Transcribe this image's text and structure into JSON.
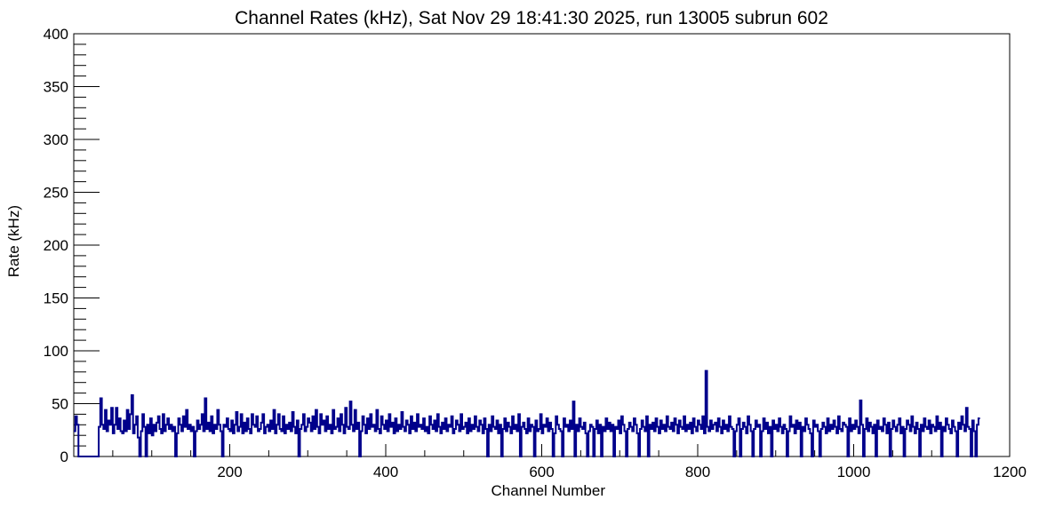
{
  "chart_data": {
    "type": "line",
    "title": "Channel Rates (kHz), Sat Nov 29 18:41:30 2025, run 13005 subrun 602",
    "xlabel": "Channel Number",
    "ylabel": "Rate (kHz)",
    "xlim": [
      0,
      1200
    ],
    "ylim": [
      0,
      400
    ],
    "x_ticks": [
      "200",
      "400",
      "600",
      "800",
      "1000",
      "1200"
    ],
    "y_ticks": [
      "0",
      "50",
      "100",
      "150",
      "200",
      "250",
      "300",
      "350",
      "400"
    ],
    "x_tick_values": [
      200,
      400,
      600,
      800,
      1000,
      1200
    ],
    "y_tick_values": [
      0,
      50,
      100,
      150,
      200,
      250,
      300,
      350,
      400
    ],
    "grid": false,
    "line_color": "#00008b",
    "series": [
      {
        "name": "",
        "step_histogram": true,
        "bin_width": 2,
        "dropout_bins_x": [
          0,
          8,
          10,
          12,
          14,
          16,
          18,
          20,
          22,
          24,
          26,
          28,
          30,
          84,
          90,
          96,
          144,
          162,
          188,
          232,
          296,
          338,
          354,
          404,
          506,
          526,
          556,
          568,
          576,
          578,
          582,
          604,
          610,
          614,
          632,
          648,
          668,
          676,
          680,
          690,
          702,
          720,
          736,
          742,
          756,
          760,
          870,
          874,
          904,
          920,
          930,
          940,
          952,
          962,
          968,
          1010,
          1030,
          1044,
          1062,
          1080,
          1098,
          1108,
          1142,
          1172,
          1188,
          1194
        ],
        "spike_points": [
          {
            "x": 2,
            "y": 52
          },
          {
            "x": 34,
            "y": 55
          },
          {
            "x": 82,
            "y": 58
          },
          {
            "x": 164,
            "y": 55
          },
          {
            "x": 350,
            "y": 52
          },
          {
            "x": 660,
            "y": 52
          },
          {
            "x": 846,
            "y": 81
          },
          {
            "x": 1028,
            "y": 53
          },
          {
            "x": 1188,
            "y": 46
          }
        ],
        "baseline_range": [
          20,
          38
        ],
        "y": [
          24,
          38,
          30,
          0,
          0,
          0,
          0,
          0,
          0,
          0,
          0,
          0,
          0,
          0,
          0,
          0,
          28,
          55,
          30,
          26,
          44,
          24,
          34,
          30,
          46,
          22,
          30,
          46,
          26,
          36,
          24,
          22,
          34,
          24,
          44,
          26,
          40,
          58,
          22,
          30,
          38,
          18,
          0,
          24,
          40,
          28,
          0,
          30,
          22,
          36,
          20,
          30,
          24,
          32,
          38,
          26,
          22,
          40,
          24,
          30,
          36,
          26,
          30,
          24,
          28,
          0,
          22,
          36,
          30,
          24,
          38,
          28,
          44,
          26,
          30,
          24,
          28,
          0,
          24,
          34,
          26,
          30,
          40,
          24,
          55,
          26,
          32,
          24,
          38,
          22,
          30,
          26,
          44,
          30,
          24,
          0,
          30,
          28,
          36,
          26,
          24,
          34,
          22,
          30,
          42,
          24,
          28,
          40,
          22,
          32,
          24,
          36,
          26,
          22,
          40,
          30,
          28,
          38,
          24,
          26,
          32,
          40,
          22,
          28,
          30,
          24,
          34,
          26,
          44,
          22,
          30,
          40,
          26,
          24,
          38,
          22,
          30,
          26,
          32,
          24,
          42,
          28,
          22,
          34,
          0,
          26,
          30,
          40,
          24,
          28,
          36,
          32,
          24,
          38,
          26,
          44,
          28,
          22,
          40,
          30,
          34,
          24,
          38,
          26,
          30,
          22,
          44,
          26,
          28,
          36,
          24,
          40,
          30,
          22,
          46,
          28,
          26,
          52,
          30,
          24,
          44,
          26,
          32,
          0,
          24,
          38,
          30,
          22,
          36,
          26,
          40,
          28,
          30,
          24,
          44,
          26,
          22,
          38,
          30,
          26,
          34,
          24,
          40,
          28,
          32,
          22,
          36,
          24,
          30,
          26,
          42,
          28,
          24,
          34,
          30,
          22,
          38,
          26,
          32,
          24,
          40,
          28,
          30,
          26,
          36,
          24,
          28,
          22,
          38,
          30,
          26,
          34,
          24,
          40,
          28,
          22,
          32,
          26,
          36,
          24,
          30,
          28,
          38,
          22,
          26,
          34,
          30,
          24,
          40,
          26,
          28,
          32,
          22,
          36,
          24,
          30,
          26,
          38,
          28,
          24,
          34,
          30,
          22,
          36,
          26,
          0,
          30,
          24,
          38,
          28,
          26,
          34,
          22,
          30,
          0,
          26,
          36,
          24,
          32,
          28,
          22,
          38,
          26,
          30,
          24,
          40,
          0,
          28,
          32,
          26,
          22,
          36,
          24,
          30,
          28,
          0,
          34,
          24,
          26,
          40,
          22,
          30,
          28,
          36,
          24,
          32,
          26,
          0,
          22,
          38,
          30,
          26,
          24,
          0,
          36,
          28,
          30,
          24,
          34,
          26,
          52,
          0,
          30,
          24,
          36,
          28,
          26,
          32,
          22,
          0,
          24,
          30,
          28,
          0,
          26,
          34,
          22,
          30,
          0,
          28,
          24,
          36,
          26,
          32,
          24,
          30,
          0,
          28,
          26,
          34,
          22,
          38,
          30,
          24,
          0,
          26,
          32,
          28,
          24,
          36,
          30,
          22,
          0,
          26,
          34,
          28,
          24,
          38,
          0,
          30,
          26,
          32,
          24,
          36,
          28,
          22,
          34,
          26,
          30,
          24,
          38,
          28,
          26,
          32,
          24,
          36,
          30,
          22,
          34,
          28,
          26,
          38,
          24,
          30,
          26,
          32,
          22,
          36,
          28,
          24,
          34,
          30,
          26,
          38,
          22,
          81,
          28,
          24,
          34,
          26,
          30,
          32,
          24,
          36,
          28,
          22,
          34,
          26,
          30,
          24,
          38,
          28,
          26,
          0,
          24,
          30,
          36,
          0,
          26,
          32,
          28,
          22,
          38,
          30,
          24,
          0,
          26,
          34,
          28,
          30,
          0,
          24,
          36,
          26,
          32,
          22,
          28,
          0,
          34,
          26,
          30,
          24,
          36,
          28,
          22,
          30,
          26,
          0,
          24,
          38,
          28,
          30,
          22,
          34,
          26,
          32,
          0,
          28,
          24,
          36,
          30,
          26,
          22,
          0,
          34,
          28,
          30,
          24,
          0,
          26,
          32,
          28,
          22,
          36,
          24,
          30,
          26,
          34,
          28,
          22,
          38,
          26,
          24,
          32,
          30,
          28,
          0,
          36,
          24,
          30,
          26,
          34,
          28,
          22,
          53,
          30,
          0,
          26,
          36,
          24,
          32,
          28,
          22,
          30,
          0,
          34,
          26,
          28,
          24,
          36,
          30,
          22,
          32,
          0,
          26,
          34,
          28,
          24,
          30,
          36,
          22,
          28,
          0,
          26,
          34,
          30,
          24,
          38,
          28,
          22,
          32,
          26,
          0,
          30,
          24,
          36,
          28,
          26,
          34,
          22,
          30,
          28,
          24,
          38,
          26,
          32,
          0,
          28,
          24,
          36,
          30,
          26,
          22,
          34,
          28,
          24,
          0,
          32,
          26,
          38,
          30,
          24,
          46,
          28,
          26,
          0,
          34,
          24,
          0,
          30,
          36
        ]
      }
    ]
  }
}
